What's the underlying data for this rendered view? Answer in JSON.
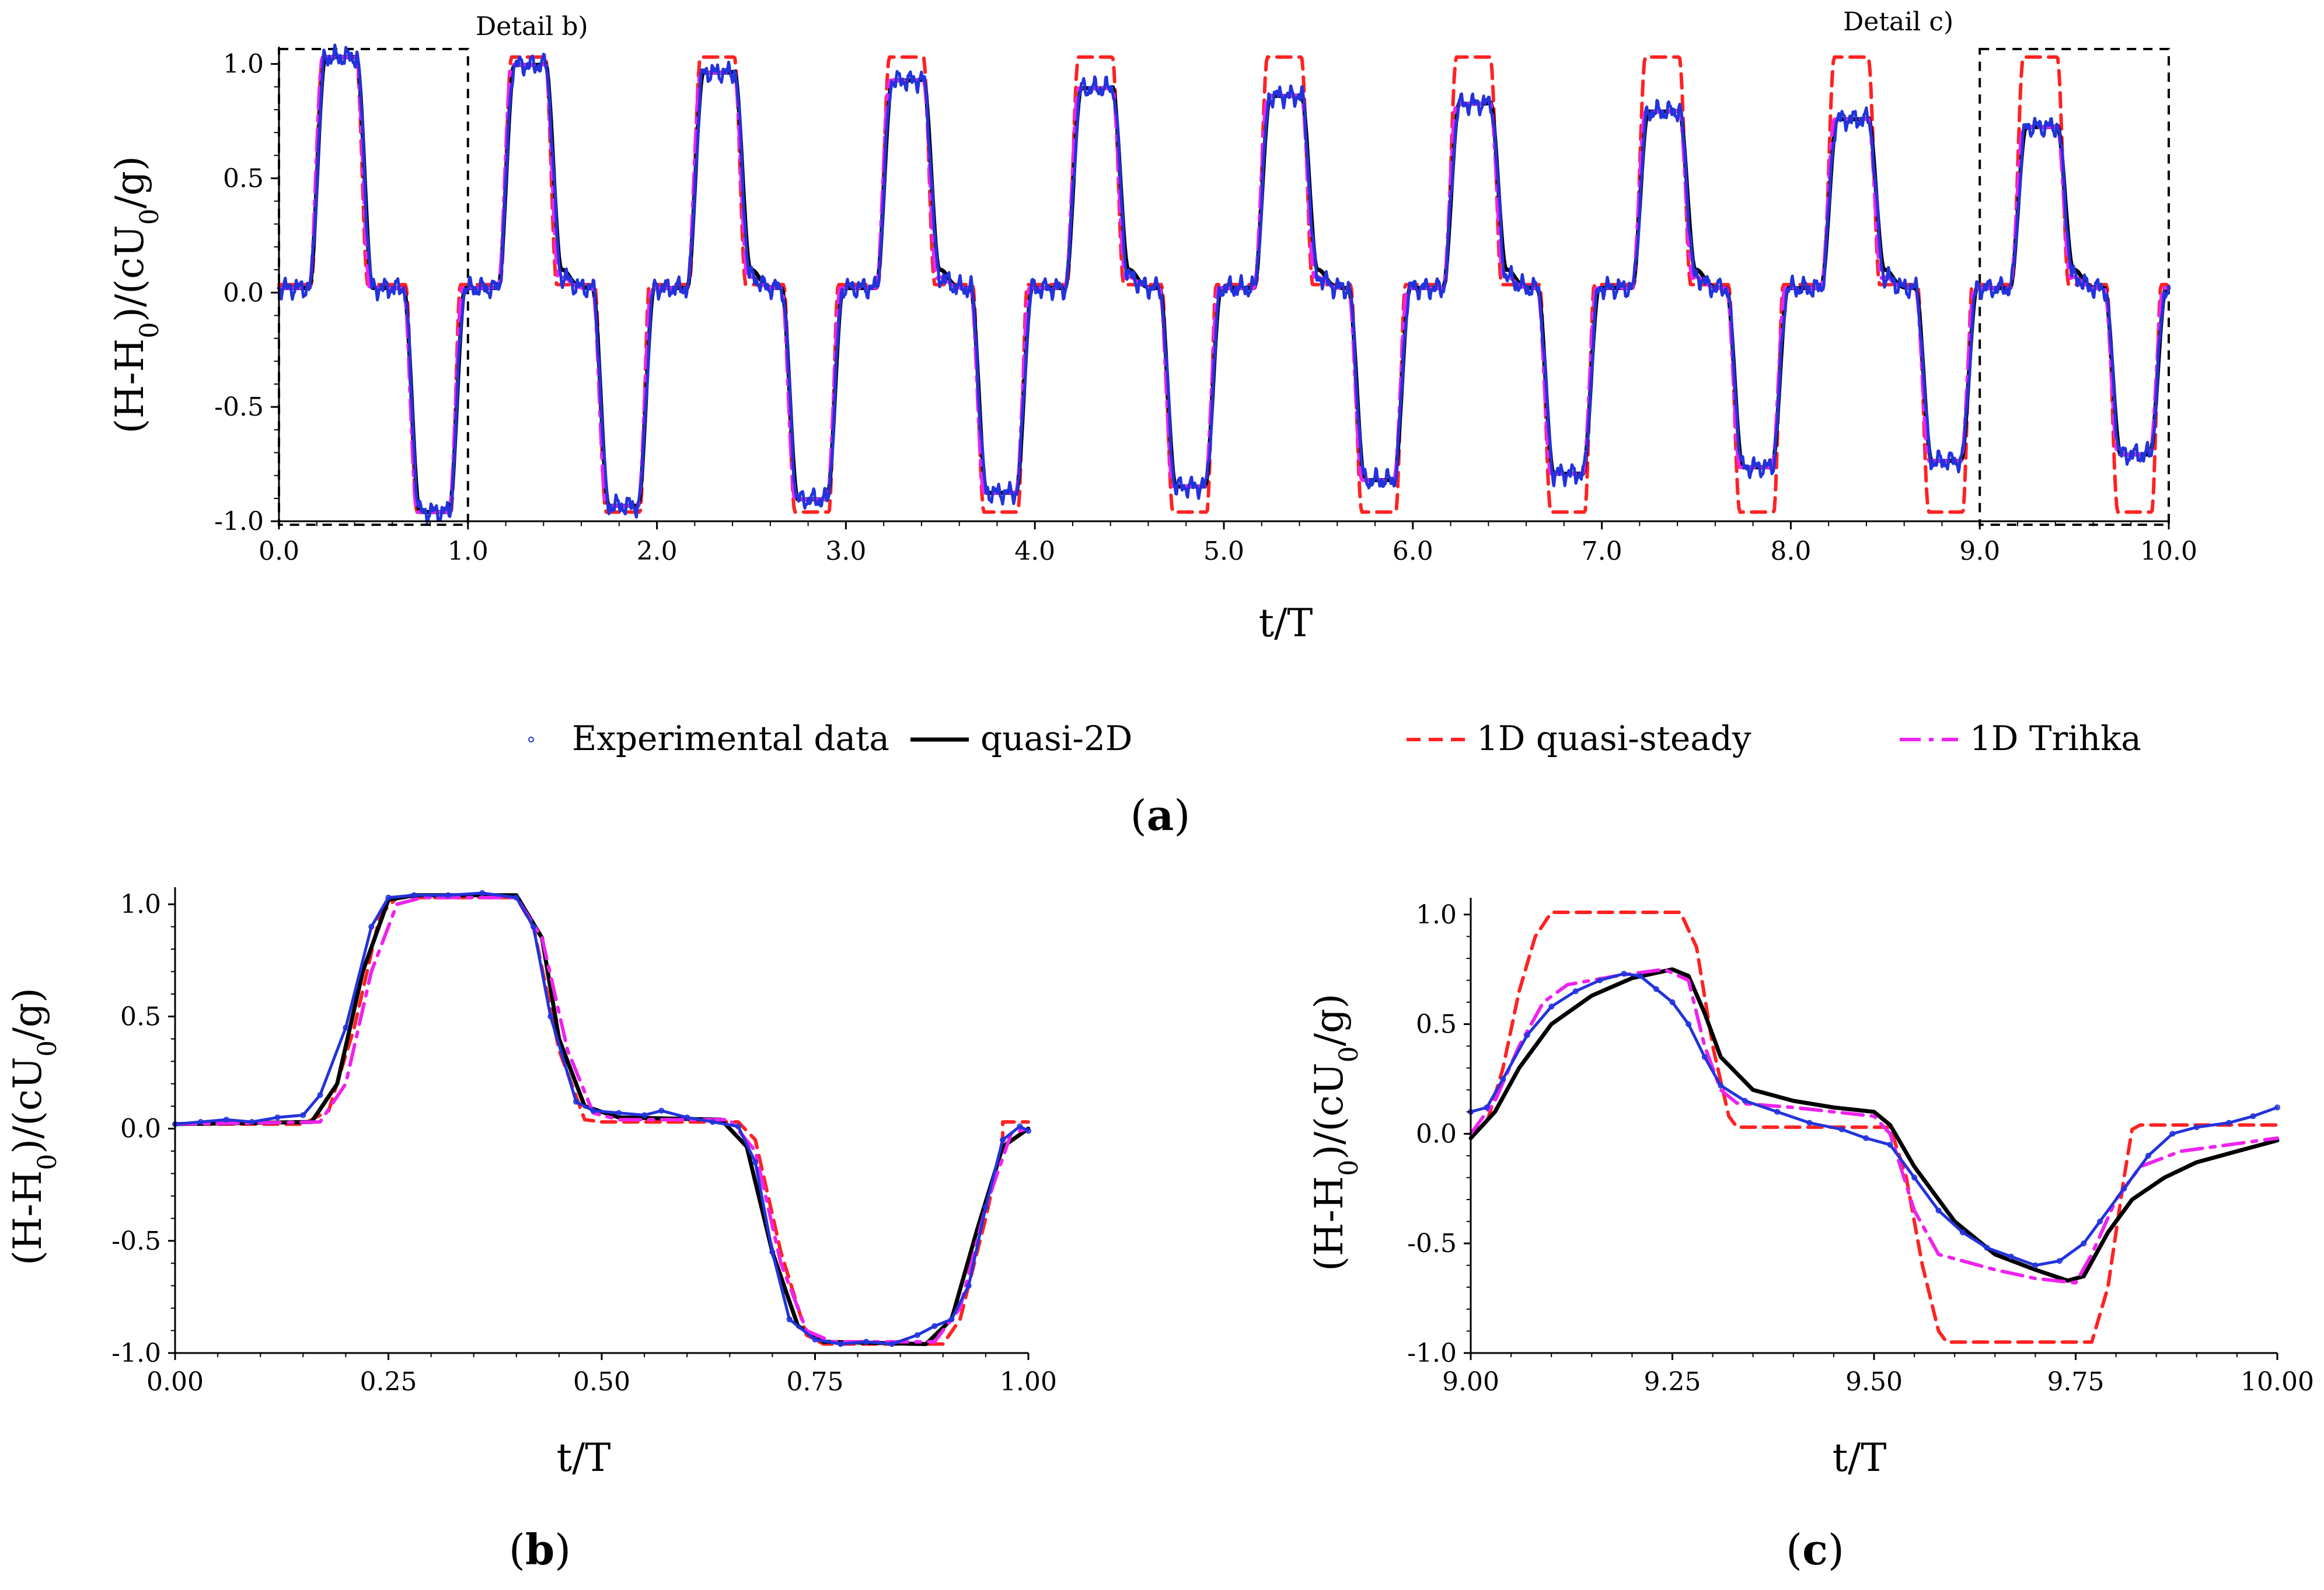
{
  "figure": {
    "legend": [
      {
        "name": "Experimental data",
        "color": "#2233dd",
        "style": "dots"
      },
      {
        "name": "quasi-2D",
        "color": "#000000",
        "style": "solid"
      },
      {
        "name": "1D quasi-steady",
        "color": "#ff2222",
        "style": "dashed"
      },
      {
        "name": "1D Trihka",
        "color": "#ee22ee",
        "style": "dashdot"
      }
    ],
    "detail_labels": {
      "b": "Detail b)",
      "c": "Detail c)"
    }
  },
  "chart_data": [
    {
      "id": "a",
      "type": "line",
      "panel_label": "a",
      "xlabel": "t/T",
      "ylabel": "(H-H0)/(cU0/g)",
      "ylabel_base": "(H-H",
      "ylabel_sub1": "0",
      "ylabel_mid": ")/(cU",
      "ylabel_sub2": "0",
      "ylabel_end": "/g)",
      "xlim": [
        0,
        10
      ],
      "ylim": [
        -1.0,
        1.05
      ],
      "xticks": [
        "0.0",
        "1.0",
        "2.0",
        "3.0",
        "4.0",
        "5.0",
        "6.0",
        "7.0",
        "8.0",
        "9.0",
        "10.0"
      ],
      "xtick_values": [
        0,
        1,
        2,
        3,
        4,
        5,
        6,
        7,
        8,
        9,
        10
      ],
      "yticks": [
        "1.0",
        "0.5",
        "0.0",
        "-0.5",
        "-1.0"
      ],
      "ytick_values": [
        1.0,
        0.5,
        0.0,
        -0.5,
        -1.0
      ],
      "detail_boxes": [
        {
          "label": "Detail b)",
          "x0": 0.0,
          "x1": 1.0,
          "y0": -1.0,
          "y1": 1.05
        },
        {
          "label": "Detail c)",
          "x0": 9.0,
          "x1": 10.0,
          "y0": -1.0,
          "y1": 1.05
        }
      ],
      "series": [
        {
          "name": "1D quasi-steady",
          "color": "#ff2222",
          "style": "dashed",
          "model": "quasisteady"
        },
        {
          "name": "quasi-2D",
          "color": "#000000",
          "style": "solid",
          "model": "quasi2d"
        },
        {
          "name": "1D Trihka",
          "color": "#ee22ee",
          "style": "dashdot",
          "model": "trihka"
        },
        {
          "name": "Experimental data",
          "color": "#2233dd",
          "style": "dots",
          "model": "experimental"
        }
      ],
      "envelope": {
        "peak_start": 1.03,
        "peak_decay": 0.034,
        "trough_start": -0.96,
        "trough_decay": 0.028
      }
    },
    {
      "id": "b",
      "type": "line",
      "panel_label": "b",
      "xlabel": "t/T",
      "ylabel": "(H-H0)/(cU0/g)",
      "ylabel_base": "(H-H",
      "ylabel_sub1": "0",
      "ylabel_mid": ")/(cU",
      "ylabel_sub2": "0",
      "ylabel_end": "/g)",
      "xlim": [
        0,
        1
      ],
      "ylim": [
        -1.0,
        1.05
      ],
      "xticks": [
        "0.00",
        "0.25",
        "0.50",
        "0.75",
        "1.00"
      ],
      "xtick_values": [
        0,
        0.25,
        0.5,
        0.75,
        1.0
      ],
      "yticks": [
        "1.0",
        "0.5",
        "0.0",
        "-0.5",
        "-1.0"
      ],
      "ytick_values": [
        1.0,
        0.5,
        0.0,
        -0.5,
        -1.0
      ],
      "series": [
        {
          "name": "1D quasi-steady",
          "color": "#ff2222",
          "style": "dashed",
          "points": [
            [
              0,
              0.02
            ],
            [
              0.15,
              0.02
            ],
            [
              0.18,
              0.08
            ],
            [
              0.21,
              0.45
            ],
            [
              0.24,
              0.95
            ],
            [
              0.26,
              1.03
            ],
            [
              0.4,
              1.03
            ],
            [
              0.42,
              0.9
            ],
            [
              0.45,
              0.35
            ],
            [
              0.48,
              0.04
            ],
            [
              0.5,
              0.03
            ],
            [
              0.66,
              0.03
            ],
            [
              0.68,
              -0.05
            ],
            [
              0.71,
              -0.55
            ],
            [
              0.74,
              -0.92
            ],
            [
              0.76,
              -0.96
            ],
            [
              0.9,
              -0.96
            ],
            [
              0.92,
              -0.85
            ],
            [
              0.95,
              -0.4
            ],
            [
              0.97,
              -0.05
            ],
            [
              0.97,
              0.03
            ],
            [
              1.0,
              0.03
            ]
          ]
        },
        {
          "name": "quasi-2D",
          "color": "#000000",
          "style": "solid",
          "points": [
            [
              0,
              0.02
            ],
            [
              0.16,
              0.03
            ],
            [
              0.19,
              0.2
            ],
            [
              0.22,
              0.7
            ],
            [
              0.25,
              1.02
            ],
            [
              0.28,
              1.04
            ],
            [
              0.4,
              1.04
            ],
            [
              0.43,
              0.85
            ],
            [
              0.45,
              0.4
            ],
            [
              0.48,
              0.1
            ],
            [
              0.52,
              0.05
            ],
            [
              0.64,
              0.04
            ],
            [
              0.67,
              -0.08
            ],
            [
              0.7,
              -0.55
            ],
            [
              0.73,
              -0.88
            ],
            [
              0.76,
              -0.95
            ],
            [
              0.88,
              -0.96
            ],
            [
              0.91,
              -0.85
            ],
            [
              0.94,
              -0.45
            ],
            [
              0.97,
              -0.08
            ],
            [
              1.0,
              0.0
            ]
          ]
        },
        {
          "name": "1D Trihka",
          "color": "#ee22ee",
          "style": "dashdot",
          "points": [
            [
              0,
              0.02
            ],
            [
              0.17,
              0.03
            ],
            [
              0.2,
              0.2
            ],
            [
              0.23,
              0.7
            ],
            [
              0.26,
              1.0
            ],
            [
              0.29,
              1.03
            ],
            [
              0.4,
              1.03
            ],
            [
              0.43,
              0.85
            ],
            [
              0.46,
              0.35
            ],
            [
              0.49,
              0.07
            ],
            [
              0.52,
              0.04
            ],
            [
              0.65,
              0.04
            ],
            [
              0.68,
              -0.1
            ],
            [
              0.71,
              -0.6
            ],
            [
              0.74,
              -0.9
            ],
            [
              0.77,
              -0.95
            ],
            [
              0.89,
              -0.95
            ],
            [
              0.92,
              -0.8
            ],
            [
              0.95,
              -0.35
            ],
            [
              0.98,
              -0.02
            ],
            [
              1.0,
              0.0
            ]
          ]
        },
        {
          "name": "Experimental data",
          "color": "#2233dd",
          "style": "dots",
          "points": [
            [
              0,
              0.02
            ],
            [
              0.03,
              0.03
            ],
            [
              0.06,
              0.04
            ],
            [
              0.09,
              0.03
            ],
            [
              0.12,
              0.05
            ],
            [
              0.15,
              0.06
            ],
            [
              0.17,
              0.15
            ],
            [
              0.2,
              0.45
            ],
            [
              0.23,
              0.9
            ],
            [
              0.25,
              1.03
            ],
            [
              0.28,
              1.04
            ],
            [
              0.32,
              1.04
            ],
            [
              0.36,
              1.05
            ],
            [
              0.4,
              1.03
            ],
            [
              0.42,
              0.9
            ],
            [
              0.44,
              0.5
            ],
            [
              0.47,
              0.12
            ],
            [
              0.49,
              0.08
            ],
            [
              0.52,
              0.07
            ],
            [
              0.55,
              0.06
            ],
            [
              0.57,
              0.08
            ],
            [
              0.6,
              0.05
            ],
            [
              0.63,
              0.03
            ],
            [
              0.66,
              0.01
            ],
            [
              0.68,
              -0.15
            ],
            [
              0.7,
              -0.55
            ],
            [
              0.72,
              -0.85
            ],
            [
              0.75,
              -0.94
            ],
            [
              0.78,
              -0.96
            ],
            [
              0.81,
              -0.95
            ],
            [
              0.84,
              -0.96
            ],
            [
              0.87,
              -0.92
            ],
            [
              0.89,
              -0.88
            ],
            [
              0.91,
              -0.85
            ],
            [
              0.93,
              -0.7
            ],
            [
              0.95,
              -0.35
            ],
            [
              0.97,
              -0.05
            ],
            [
              0.99,
              0.01
            ],
            [
              1.0,
              -0.01
            ]
          ]
        }
      ]
    },
    {
      "id": "c",
      "type": "line",
      "panel_label": "c",
      "xlabel": "t/T",
      "ylabel": "(H-H0)/(cU0/g)",
      "ylabel_base": "(H-H",
      "ylabel_sub1": "0",
      "ylabel_mid": ")/(cU",
      "ylabel_sub2": "0",
      "ylabel_end": "/g)",
      "xlim": [
        9,
        10
      ],
      "ylim": [
        -1.0,
        1.05
      ],
      "xticks": [
        "9.00",
        "9.25",
        "9.50",
        "9.75",
        "10.00"
      ],
      "xtick_values": [
        9.0,
        9.25,
        9.5,
        9.75,
        10.0
      ],
      "yticks": [
        "1.0",
        "0.5",
        "0.0",
        "-0.5",
        "-1.0"
      ],
      "ytick_values": [
        1.0,
        0.5,
        0.0,
        -0.5,
        -1.0
      ],
      "series": [
        {
          "name": "1D quasi-steady",
          "color": "#ff2222",
          "style": "dashed",
          "points": [
            [
              9.0,
              0.0
            ],
            [
              9.02,
              0.05
            ],
            [
              9.04,
              0.3
            ],
            [
              9.06,
              0.65
            ],
            [
              9.08,
              0.9
            ],
            [
              9.1,
              1.01
            ],
            [
              9.26,
              1.01
            ],
            [
              9.28,
              0.85
            ],
            [
              9.3,
              0.4
            ],
            [
              9.32,
              0.08
            ],
            [
              9.33,
              0.03
            ],
            [
              9.52,
              0.03
            ],
            [
              9.54,
              -0.2
            ],
            [
              9.56,
              -0.6
            ],
            [
              9.58,
              -0.9
            ],
            [
              9.59,
              -0.95
            ],
            [
              9.77,
              -0.95
            ],
            [
              9.79,
              -0.7
            ],
            [
              9.81,
              -0.2
            ],
            [
              9.82,
              0.02
            ],
            [
              9.83,
              0.04
            ],
            [
              10.0,
              0.04
            ]
          ]
        },
        {
          "name": "quasi-2D",
          "color": "#000000",
          "style": "solid",
          "points": [
            [
              9.0,
              -0.02
            ],
            [
              9.03,
              0.1
            ],
            [
              9.06,
              0.3
            ],
            [
              9.1,
              0.5
            ],
            [
              9.15,
              0.63
            ],
            [
              9.2,
              0.71
            ],
            [
              9.25,
              0.75
            ],
            [
              9.27,
              0.72
            ],
            [
              9.29,
              0.55
            ],
            [
              9.31,
              0.35
            ],
            [
              9.35,
              0.2
            ],
            [
              9.4,
              0.15
            ],
            [
              9.45,
              0.12
            ],
            [
              9.5,
              0.1
            ],
            [
              9.52,
              0.04
            ],
            [
              9.55,
              -0.15
            ],
            [
              9.6,
              -0.4
            ],
            [
              9.65,
              -0.55
            ],
            [
              9.7,
              -0.62
            ],
            [
              9.74,
              -0.67
            ],
            [
              9.76,
              -0.65
            ],
            [
              9.79,
              -0.45
            ],
            [
              9.82,
              -0.3
            ],
            [
              9.86,
              -0.2
            ],
            [
              9.9,
              -0.13
            ],
            [
              9.95,
              -0.08
            ],
            [
              10.0,
              -0.03
            ]
          ]
        },
        {
          "name": "1D Trihka",
          "color": "#ee22ee",
          "style": "dashdot",
          "points": [
            [
              9.0,
              0.0
            ],
            [
              9.03,
              0.15
            ],
            [
              9.06,
              0.4
            ],
            [
              9.09,
              0.6
            ],
            [
              9.12,
              0.68
            ],
            [
              9.18,
              0.72
            ],
            [
              9.24,
              0.75
            ],
            [
              9.27,
              0.7
            ],
            [
              9.29,
              0.4
            ],
            [
              9.31,
              0.2
            ],
            [
              9.33,
              0.14
            ],
            [
              9.4,
              0.12
            ],
            [
              9.45,
              0.1
            ],
            [
              9.5,
              0.08
            ],
            [
              9.52,
              0.0
            ],
            [
              9.55,
              -0.35
            ],
            [
              9.58,
              -0.55
            ],
            [
              9.65,
              -0.62
            ],
            [
              9.7,
              -0.66
            ],
            [
              9.75,
              -0.68
            ],
            [
              9.77,
              -0.55
            ],
            [
              9.8,
              -0.3
            ],
            [
              9.83,
              -0.15
            ],
            [
              9.88,
              -0.08
            ],
            [
              9.94,
              -0.05
            ],
            [
              10.0,
              -0.02
            ]
          ]
        },
        {
          "name": "Experimental data",
          "color": "#2233dd",
          "style": "dots",
          "points": [
            [
              9.0,
              0.1
            ],
            [
              9.02,
              0.12
            ],
            [
              9.04,
              0.25
            ],
            [
              9.07,
              0.45
            ],
            [
              9.1,
              0.58
            ],
            [
              9.13,
              0.65
            ],
            [
              9.16,
              0.7
            ],
            [
              9.19,
              0.73
            ],
            [
              9.21,
              0.72
            ],
            [
              9.23,
              0.66
            ],
            [
              9.25,
              0.6
            ],
            [
              9.27,
              0.5
            ],
            [
              9.29,
              0.35
            ],
            [
              9.31,
              0.22
            ],
            [
              9.34,
              0.15
            ],
            [
              9.38,
              0.1
            ],
            [
              9.42,
              0.05
            ],
            [
              9.46,
              0.02
            ],
            [
              9.49,
              -0.02
            ],
            [
              9.52,
              -0.05
            ],
            [
              9.55,
              -0.2
            ],
            [
              9.58,
              -0.35
            ],
            [
              9.61,
              -0.45
            ],
            [
              9.64,
              -0.52
            ],
            [
              9.67,
              -0.56
            ],
            [
              9.7,
              -0.6
            ],
            [
              9.73,
              -0.58
            ],
            [
              9.76,
              -0.5
            ],
            [
              9.78,
              -0.4
            ],
            [
              9.81,
              -0.25
            ],
            [
              9.84,
              -0.1
            ],
            [
              9.87,
              0.0
            ],
            [
              9.9,
              0.03
            ],
            [
              9.94,
              0.05
            ],
            [
              9.97,
              0.08
            ],
            [
              10.0,
              0.12
            ]
          ]
        }
      ]
    }
  ]
}
